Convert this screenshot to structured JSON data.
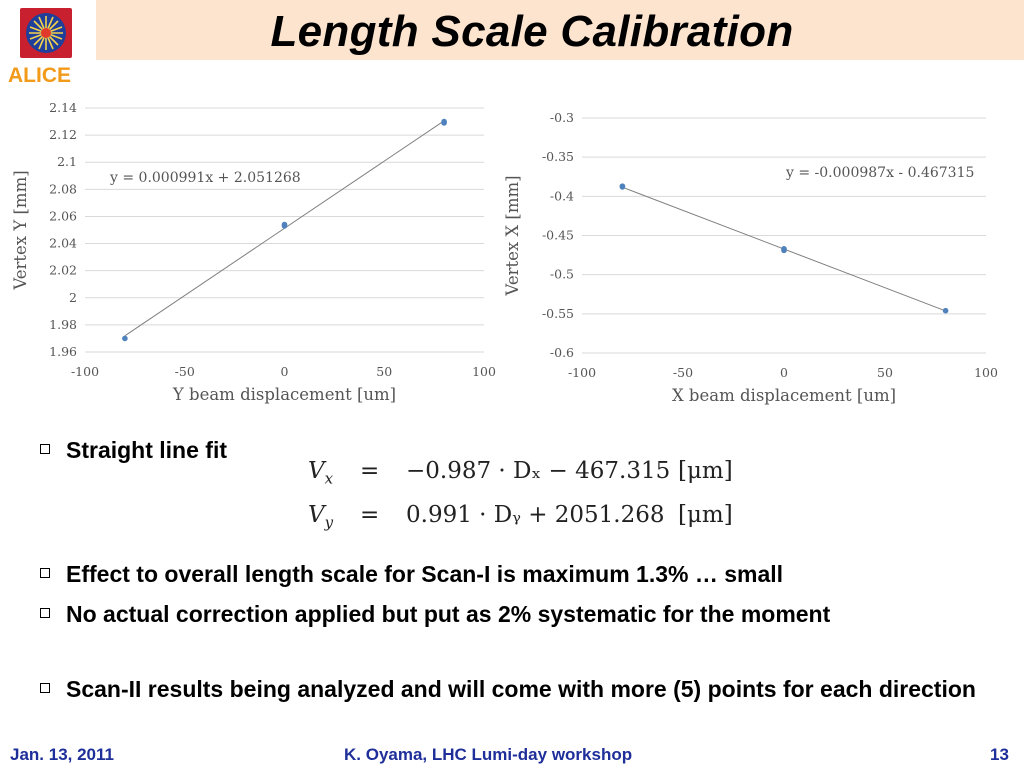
{
  "slide": {
    "title": "Length Scale Calibration",
    "logo_text": "ALICE"
  },
  "chart_data": [
    {
      "type": "scatter",
      "fit": "linear",
      "xlabel": "Y beam displacement [um]",
      "ylabel": "Vertex Y [mm]",
      "xlim": [
        -100,
        100
      ],
      "ylim": [
        1.96,
        2.14
      ],
      "x_ticks": [
        "-100",
        "-50",
        "0",
        "50",
        "100"
      ],
      "y_ticks": [
        "1.96",
        "1.98",
        "2",
        "2.02",
        "2.04",
        "2.06",
        "2.08",
        "2.1",
        "2.12",
        "2.14"
      ],
      "grid": "horizontal",
      "annotation": "y = 0.000991x + 2.051268",
      "fit_slope": 0.000991,
      "fit_intercept": 2.051268,
      "fit_x_range": [
        -80,
        80
      ],
      "points": [
        {
          "x": -80,
          "y": 1.97
        },
        {
          "x": 0,
          "y": 2.053
        },
        {
          "x": 0,
          "y": 2.054
        },
        {
          "x": 80,
          "y": 2.129
        },
        {
          "x": 80,
          "y": 2.13
        }
      ],
      "color": "#4f81bd"
    },
    {
      "type": "scatter",
      "fit": "linear",
      "xlabel": "X beam displacement [um]",
      "ylabel": "Vertex X [mm]",
      "xlim": [
        -100,
        100
      ],
      "ylim": [
        -0.6,
        -0.3
      ],
      "x_ticks": [
        "-100",
        "-50",
        "0",
        "50",
        "100"
      ],
      "y_ticks": [
        "-0.3",
        "-0.35",
        "-0.4",
        "-0.45",
        "-0.5",
        "-0.55",
        "-0.6"
      ],
      "grid": "horizontal",
      "annotation": "y = -0.000987x - 0.467315",
      "fit_slope": -0.000987,
      "fit_intercept": -0.467315,
      "fit_x_range": [
        -80,
        80
      ],
      "points": [
        {
          "x": -80,
          "y": -0.388
        },
        {
          "x": -80,
          "y": -0.387
        },
        {
          "x": 0,
          "y": -0.467
        },
        {
          "x": 0,
          "y": -0.469
        },
        {
          "x": 80,
          "y": -0.546
        }
      ],
      "color": "#4f81bd"
    }
  ],
  "bullets": {
    "fit": "Straight line fit",
    "effect": "Effect to overall length scale for Scan-I is maximum 1.3% … small",
    "correction": "No actual correction applied but put as 2% systematic for the moment",
    "scan2": "Scan-II results being analyzed and will come with more (5) points for each direction"
  },
  "equations": {
    "vx": {
      "lhs_base": "V",
      "lhs_sub": "x",
      "eq": "=",
      "rhs": "−0.987 · Dₓ − 467.315",
      "unit": "[μm]"
    },
    "vy": {
      "lhs_base": "V",
      "lhs_sub": "y",
      "eq": "=",
      "rhs": "0.991 · Dᵧ + 2051.268",
      "unit": "[μm]"
    }
  },
  "footer": {
    "date": "Jan. 13, 2011",
    "presenter": "K. Oyama, LHC Lumi-day workshop",
    "page": "13"
  }
}
